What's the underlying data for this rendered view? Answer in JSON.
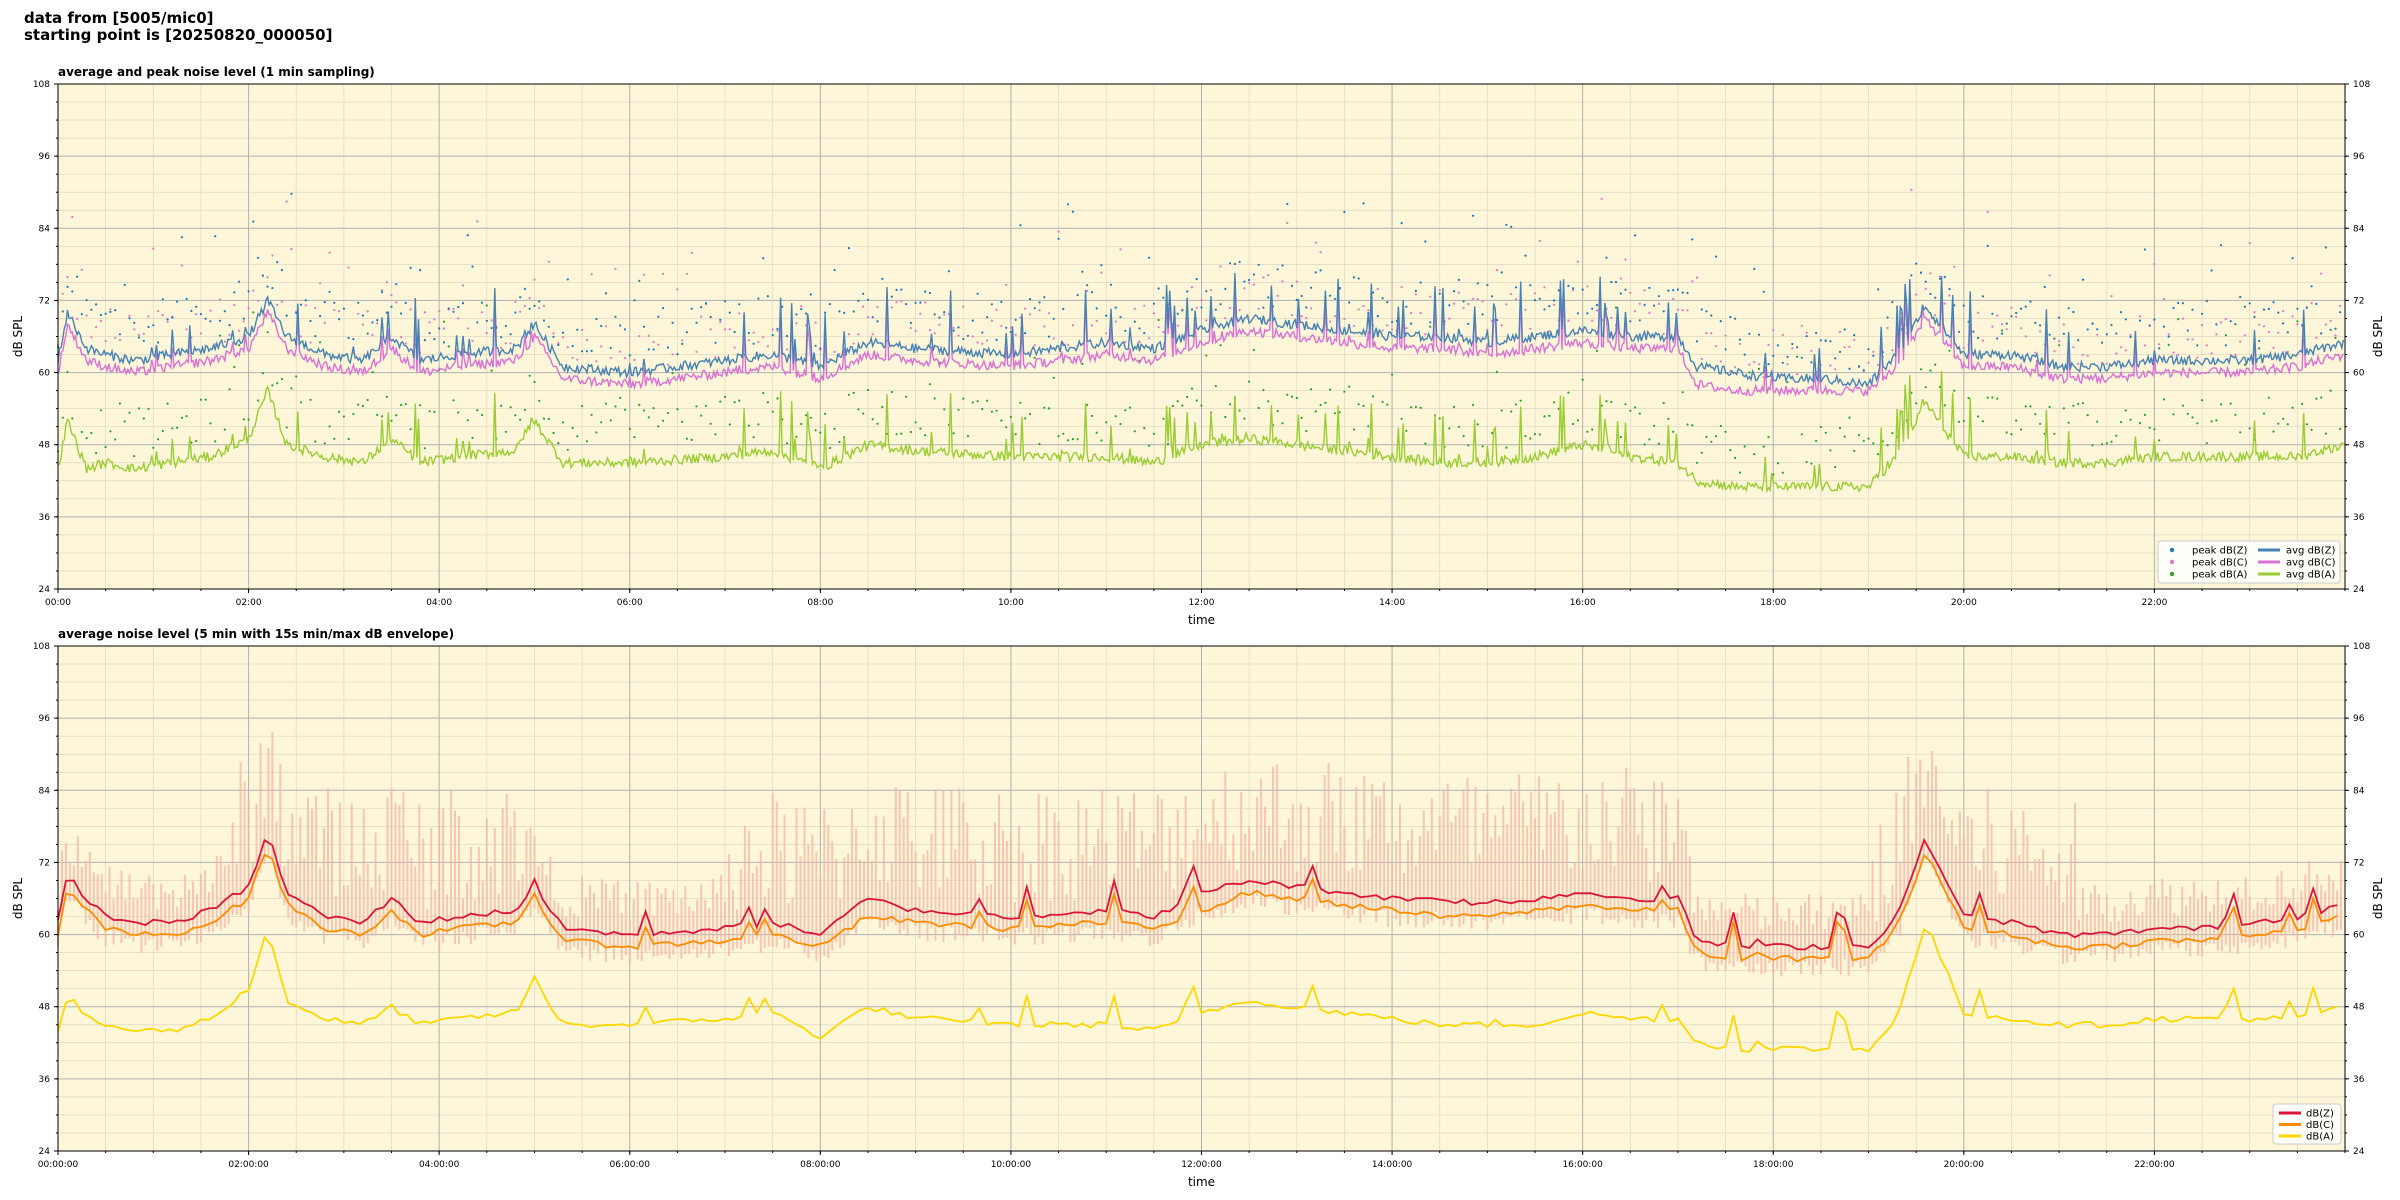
{
  "header": {
    "line1": "data from [5005/mic0]",
    "line2": "starting point is [20250820_000050]"
  },
  "colors": {
    "plot_bg": "#fdf6d8",
    "grid_major": "#b3b3b3",
    "grid_minor": "#e0d8c2",
    "peak_z": "#1f77b4",
    "peak_c": "#e377c2",
    "peak_a": "#2ca02c",
    "avg_z": "#4682b4",
    "avg_c": "#da70d6",
    "avg_a": "#9acd32",
    "dbz": "#dc143c",
    "dbc": "#ff8c00",
    "dba": "#ffd700",
    "envelope": "#f4b7a7"
  },
  "chart_data": [
    {
      "type": "scatter+line",
      "title": "average and peak noise level (1 min sampling)",
      "xlabel": "time",
      "ylabel": "dB SPL",
      "ylim": [
        24,
        108
      ],
      "yticks": [
        24,
        36,
        48,
        60,
        72,
        84,
        96,
        108
      ],
      "xlim": [
        "00:00",
        "24:00"
      ],
      "xticks": [
        "00:00",
        "02:00",
        "04:00",
        "06:00",
        "08:00",
        "10:00",
        "12:00",
        "14:00",
        "16:00",
        "18:00",
        "20:00",
        "22:00"
      ],
      "grid": true,
      "legend_position": "bottom-right",
      "legend": [
        "peak dB(Z)",
        "peak dB(C)",
        "peak dB(A)",
        "avg dB(Z)",
        "avg dB(C)",
        "avg dB(A)"
      ],
      "series_keyframes": {
        "x_hours": [
          0,
          0.1,
          0.3,
          0.5,
          0.8,
          1.2,
          1.6,
          2.0,
          2.2,
          2.4,
          2.8,
          3.2,
          3.5,
          3.8,
          4.2,
          4.8,
          5.0,
          5.3,
          6.0,
          7.0,
          7.5,
          8.0,
          8.5,
          9.0,
          10.0,
          11.0,
          11.5,
          12.0,
          12.5,
          13.0,
          13.5,
          14.0,
          14.5,
          15.0,
          15.5,
          16.0,
          16.5,
          17.0,
          17.2,
          17.6,
          18.0,
          18.5,
          19.0,
          19.3,
          19.6,
          20.0,
          20.5,
          21.0,
          21.5,
          22.0,
          22.5,
          23.0,
          23.5,
          24.0
        ],
        "avg_z": [
          62,
          70,
          64,
          63,
          62,
          63,
          64,
          66,
          72,
          66,
          63,
          62,
          66,
          62,
          63,
          64,
          68,
          61,
          60,
          62,
          63,
          61,
          65,
          64,
          63,
          65,
          64,
          67,
          69,
          68,
          67,
          66,
          66,
          65,
          66,
          67,
          66,
          66,
          61,
          60,
          59,
          59,
          58,
          63,
          71,
          63,
          63,
          61,
          61,
          62,
          62,
          62,
          63,
          65
        ],
        "avg_c": [
          60,
          68,
          62,
          61,
          60,
          61,
          62,
          64,
          70,
          64,
          61,
          60,
          64,
          60,
          61,
          62,
          66,
          59,
          58,
          60,
          61,
          59,
          63,
          62,
          61,
          63,
          62,
          65,
          67,
          66,
          65,
          64,
          64,
          63,
          64,
          65,
          64,
          64,
          58,
          57,
          57,
          57,
          57,
          61,
          69,
          61,
          61,
          59,
          59,
          60,
          60,
          60,
          61,
          63
        ],
        "avg_a": [
          44,
          52,
          44,
          45,
          44,
          45,
          46,
          49,
          57,
          48,
          46,
          45,
          49,
          45,
          46,
          47,
          52,
          45,
          45,
          46,
          47,
          44,
          48,
          47,
          46,
          46,
          45,
          48,
          49,
          48,
          47,
          46,
          45,
          45,
          46,
          48,
          46,
          45,
          42,
          41,
          41,
          41,
          41,
          46,
          55,
          46,
          46,
          45,
          45,
          46,
          46,
          46,
          46,
          48
        ]
      }
    },
    {
      "type": "line",
      "title": "average noise level (5 min with 15s min/max dB envelope)",
      "xlabel": "time",
      "ylabel": "dB SPL",
      "ylim": [
        24,
        108
      ],
      "yticks": [
        24,
        36,
        48,
        60,
        72,
        84,
        96,
        108
      ],
      "xlim": [
        "00:00:00",
        "24:00:00"
      ],
      "xticks": [
        "00:00:00",
        "02:00:00",
        "04:00:00",
        "06:00:00",
        "08:00:00",
        "10:00:00",
        "12:00:00",
        "14:00:00",
        "16:00:00",
        "18:00:00",
        "20:00:00",
        "22:00:00"
      ],
      "grid": true,
      "legend_position": "bottom-right",
      "legend": [
        "dB(Z)",
        "dB(C)",
        "dB(A)"
      ],
      "series_keyframes": {
        "x_hours": [
          0,
          0.1,
          0.3,
          0.5,
          0.8,
          1.2,
          1.6,
          2.0,
          2.2,
          2.4,
          2.8,
          3.2,
          3.5,
          3.8,
          4.2,
          4.8,
          5.0,
          5.3,
          6.0,
          7.0,
          7.5,
          8.0,
          8.5,
          9.0,
          10.0,
          11.0,
          11.5,
          12.0,
          12.5,
          13.0,
          13.5,
          14.0,
          14.5,
          15.0,
          15.5,
          16.0,
          16.5,
          17.0,
          17.2,
          17.6,
          18.0,
          18.5,
          19.0,
          19.3,
          19.6,
          20.0,
          20.5,
          21.0,
          21.5,
          22.0,
          22.5,
          23.0,
          23.5,
          24.0
        ],
        "dbz": [
          62,
          70,
          66,
          63,
          62,
          62,
          64,
          68,
          77,
          67,
          63,
          62,
          66,
          62,
          63,
          64,
          68,
          61,
          60,
          61,
          62,
          60,
          66,
          64,
          63,
          64,
          63,
          67,
          69,
          68,
          67,
          66,
          66,
          65,
          66,
          67,
          66,
          66,
          59,
          58,
          58,
          58,
          58,
          63,
          76,
          63,
          62,
          60,
          60,
          61,
          61,
          62,
          63,
          65
        ],
        "dbc": [
          60,
          68,
          64,
          61,
          60,
          60,
          62,
          66,
          75,
          65,
          61,
          60,
          64,
          60,
          61,
          62,
          66,
          59,
          58,
          59,
          60,
          58,
          63,
          62,
          61,
          62,
          61,
          64,
          67,
          66,
          65,
          64,
          63,
          63,
          64,
          65,
          64,
          64,
          57,
          56,
          56,
          56,
          56,
          61,
          74,
          61,
          60,
          58,
          58,
          59,
          59,
          60,
          61,
          63
        ],
        "dba": [
          44,
          50,
          46,
          45,
          44,
          44,
          46,
          51,
          61,
          49,
          46,
          45,
          48,
          45,
          46,
          47,
          52,
          45,
          45,
          46,
          47,
          43,
          48,
          46,
          45,
          45,
          44,
          47,
          49,
          48,
          47,
          46,
          45,
          45,
          45,
          47,
          46,
          46,
          42,
          41,
          41,
          41,
          41,
          46,
          62,
          47,
          46,
          45,
          45,
          46,
          46,
          46,
          46,
          48
        ]
      }
    }
  ]
}
